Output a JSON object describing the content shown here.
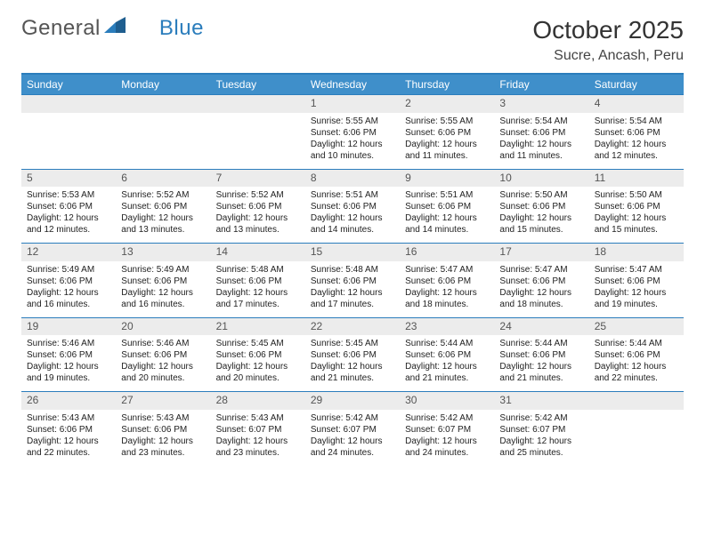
{
  "logo": {
    "text1": "General",
    "text2": "Blue"
  },
  "header": {
    "title": "October 2025",
    "location": "Sucre, Ancash, Peru"
  },
  "columns": [
    "Sunday",
    "Monday",
    "Tuesday",
    "Wednesday",
    "Thursday",
    "Friday",
    "Saturday"
  ],
  "colors": {
    "header_bg": "#3f8fca",
    "header_text": "#ffffff",
    "border": "#2b7dbc",
    "daynum_bg": "#ececec",
    "daynum_text": "#555555",
    "body_text": "#222222"
  },
  "weeks": [
    [
      null,
      null,
      null,
      {
        "n": "1",
        "sr": "5:55 AM",
        "ss": "6:06 PM",
        "dl": "12 hours and 10 minutes."
      },
      {
        "n": "2",
        "sr": "5:55 AM",
        "ss": "6:06 PM",
        "dl": "12 hours and 11 minutes."
      },
      {
        "n": "3",
        "sr": "5:54 AM",
        "ss": "6:06 PM",
        "dl": "12 hours and 11 minutes."
      },
      {
        "n": "4",
        "sr": "5:54 AM",
        "ss": "6:06 PM",
        "dl": "12 hours and 12 minutes."
      }
    ],
    [
      {
        "n": "5",
        "sr": "5:53 AM",
        "ss": "6:06 PM",
        "dl": "12 hours and 12 minutes."
      },
      {
        "n": "6",
        "sr": "5:52 AM",
        "ss": "6:06 PM",
        "dl": "12 hours and 13 minutes."
      },
      {
        "n": "7",
        "sr": "5:52 AM",
        "ss": "6:06 PM",
        "dl": "12 hours and 13 minutes."
      },
      {
        "n": "8",
        "sr": "5:51 AM",
        "ss": "6:06 PM",
        "dl": "12 hours and 14 minutes."
      },
      {
        "n": "9",
        "sr": "5:51 AM",
        "ss": "6:06 PM",
        "dl": "12 hours and 14 minutes."
      },
      {
        "n": "10",
        "sr": "5:50 AM",
        "ss": "6:06 PM",
        "dl": "12 hours and 15 minutes."
      },
      {
        "n": "11",
        "sr": "5:50 AM",
        "ss": "6:06 PM",
        "dl": "12 hours and 15 minutes."
      }
    ],
    [
      {
        "n": "12",
        "sr": "5:49 AM",
        "ss": "6:06 PM",
        "dl": "12 hours and 16 minutes."
      },
      {
        "n": "13",
        "sr": "5:49 AM",
        "ss": "6:06 PM",
        "dl": "12 hours and 16 minutes."
      },
      {
        "n": "14",
        "sr": "5:48 AM",
        "ss": "6:06 PM",
        "dl": "12 hours and 17 minutes."
      },
      {
        "n": "15",
        "sr": "5:48 AM",
        "ss": "6:06 PM",
        "dl": "12 hours and 17 minutes."
      },
      {
        "n": "16",
        "sr": "5:47 AM",
        "ss": "6:06 PM",
        "dl": "12 hours and 18 minutes."
      },
      {
        "n": "17",
        "sr": "5:47 AM",
        "ss": "6:06 PM",
        "dl": "12 hours and 18 minutes."
      },
      {
        "n": "18",
        "sr": "5:47 AM",
        "ss": "6:06 PM",
        "dl": "12 hours and 19 minutes."
      }
    ],
    [
      {
        "n": "19",
        "sr": "5:46 AM",
        "ss": "6:06 PM",
        "dl": "12 hours and 19 minutes."
      },
      {
        "n": "20",
        "sr": "5:46 AM",
        "ss": "6:06 PM",
        "dl": "12 hours and 20 minutes."
      },
      {
        "n": "21",
        "sr": "5:45 AM",
        "ss": "6:06 PM",
        "dl": "12 hours and 20 minutes."
      },
      {
        "n": "22",
        "sr": "5:45 AM",
        "ss": "6:06 PM",
        "dl": "12 hours and 21 minutes."
      },
      {
        "n": "23",
        "sr": "5:44 AM",
        "ss": "6:06 PM",
        "dl": "12 hours and 21 minutes."
      },
      {
        "n": "24",
        "sr": "5:44 AM",
        "ss": "6:06 PM",
        "dl": "12 hours and 21 minutes."
      },
      {
        "n": "25",
        "sr": "5:44 AM",
        "ss": "6:06 PM",
        "dl": "12 hours and 22 minutes."
      }
    ],
    [
      {
        "n": "26",
        "sr": "5:43 AM",
        "ss": "6:06 PM",
        "dl": "12 hours and 22 minutes."
      },
      {
        "n": "27",
        "sr": "5:43 AM",
        "ss": "6:06 PM",
        "dl": "12 hours and 23 minutes."
      },
      {
        "n": "28",
        "sr": "5:43 AM",
        "ss": "6:07 PM",
        "dl": "12 hours and 23 minutes."
      },
      {
        "n": "29",
        "sr": "5:42 AM",
        "ss": "6:07 PM",
        "dl": "12 hours and 24 minutes."
      },
      {
        "n": "30",
        "sr": "5:42 AM",
        "ss": "6:07 PM",
        "dl": "12 hours and 24 minutes."
      },
      {
        "n": "31",
        "sr": "5:42 AM",
        "ss": "6:07 PM",
        "dl": "12 hours and 25 minutes."
      },
      null
    ]
  ],
  "labels": {
    "sunrise": "Sunrise: ",
    "sunset": "Sunset: ",
    "daylight": "Daylight: "
  }
}
